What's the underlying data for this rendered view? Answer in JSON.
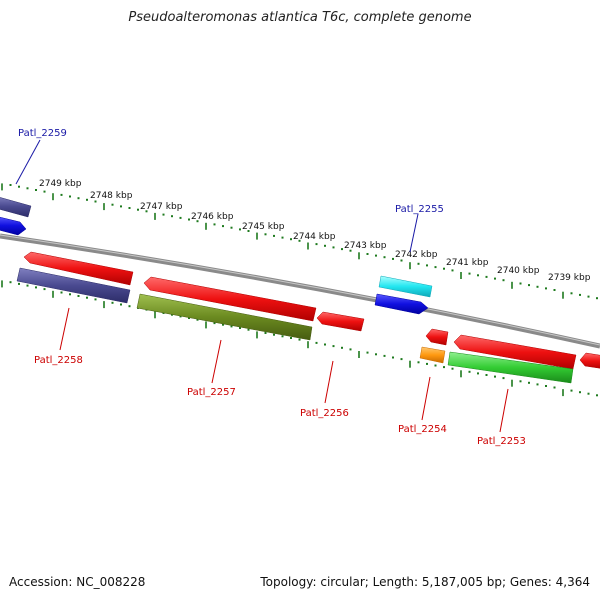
{
  "title": "Pseudoalteromonas atlantica T6c, complete genome",
  "footer": {
    "accession": "Accession: NC_008228",
    "topology": "Topology: circular; Length: 5,187,005 bp; Genes: 4,364"
  },
  "kbp_labels": [
    "2749 kbp",
    "2748 kbp",
    "2747 kbp",
    "2746 kbp",
    "2745 kbp",
    "2744 kbp",
    "2743 kbp",
    "2742 kbp",
    "2741 kbp",
    "2740 kbp",
    "2739 kbp"
  ],
  "gene_labels": {
    "g2259": "Patl_2259",
    "g2255": "Patl_2255",
    "g2258": "Patl_2258",
    "g2257": "Patl_2257",
    "g2256": "Patl_2256",
    "g2254": "Patl_2254",
    "g2253": "Patl_2253"
  },
  "colors": {
    "backbone": "#8a8a8a",
    "ticks": "#1e7a1e",
    "forward_label": "#1a1aa6",
    "reverse_label": "#cc0000",
    "red_gene": "#ee1111",
    "blue_gene": "#1010e0",
    "slate_gene": "#4a4a90",
    "olive_gene": "#6b8a20",
    "cyan_gene": "#22e6f0",
    "orange_gene": "#ff9910",
    "green_gene": "#33cc33"
  }
}
